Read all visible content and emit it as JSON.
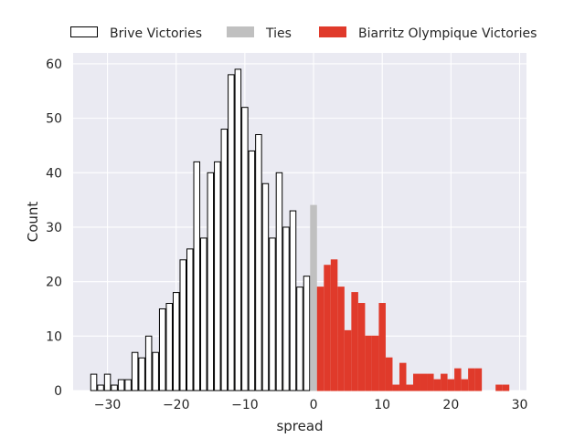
{
  "chart_data": {
    "type": "bar",
    "xlabel": "spread",
    "ylabel": "Count",
    "xlim": [
      -35,
      31
    ],
    "ylim": [
      0,
      62
    ],
    "xticks": [
      -30,
      -20,
      -10,
      0,
      10,
      20,
      30
    ],
    "yticks": [
      0,
      10,
      20,
      30,
      40,
      50,
      60
    ],
    "grid": true,
    "legend_position": "top",
    "series": [
      {
        "name": "Brive Victories",
        "fill": "#ffffff",
        "stroke": "#000000",
        "x": [
          -32,
          -31,
          -30,
          -29,
          -28,
          -27,
          -26,
          -25,
          -24,
          -23,
          -22,
          -21,
          -20,
          -19,
          -18,
          -17,
          -16,
          -15,
          -14,
          -13,
          -12,
          -11,
          -10,
          -9,
          -8,
          -7,
          -6,
          -5,
          -4,
          -3,
          -2,
          -1
        ],
        "values": [
          3,
          1,
          3,
          1,
          2,
          2,
          7,
          6,
          10,
          7,
          15,
          16,
          18,
          24,
          26,
          42,
          28,
          40,
          42,
          48,
          58,
          59,
          52,
          44,
          47,
          38,
          28,
          40,
          30,
          33,
          19,
          21
        ]
      },
      {
        "name": "Ties",
        "fill": "#c0c0c0",
        "stroke": "#c0c0c0",
        "x": [
          0
        ],
        "values": [
          34
        ]
      },
      {
        "name": "Biarritz Olympique Victories",
        "fill": "#e03a2b",
        "stroke": "#e03a2b",
        "x": [
          1,
          2,
          3,
          4,
          5,
          6,
          7,
          8,
          9,
          10,
          11,
          12,
          13,
          14,
          15,
          16,
          17,
          18,
          19,
          20,
          21,
          22,
          23,
          24,
          25,
          26,
          27,
          28
        ],
        "values": [
          19,
          23,
          24,
          19,
          11,
          18,
          16,
          10,
          10,
          16,
          6,
          1,
          5,
          1,
          3,
          3,
          3,
          2,
          3,
          2,
          4,
          2,
          4,
          4,
          0,
          0,
          1,
          1
        ]
      }
    ]
  }
}
